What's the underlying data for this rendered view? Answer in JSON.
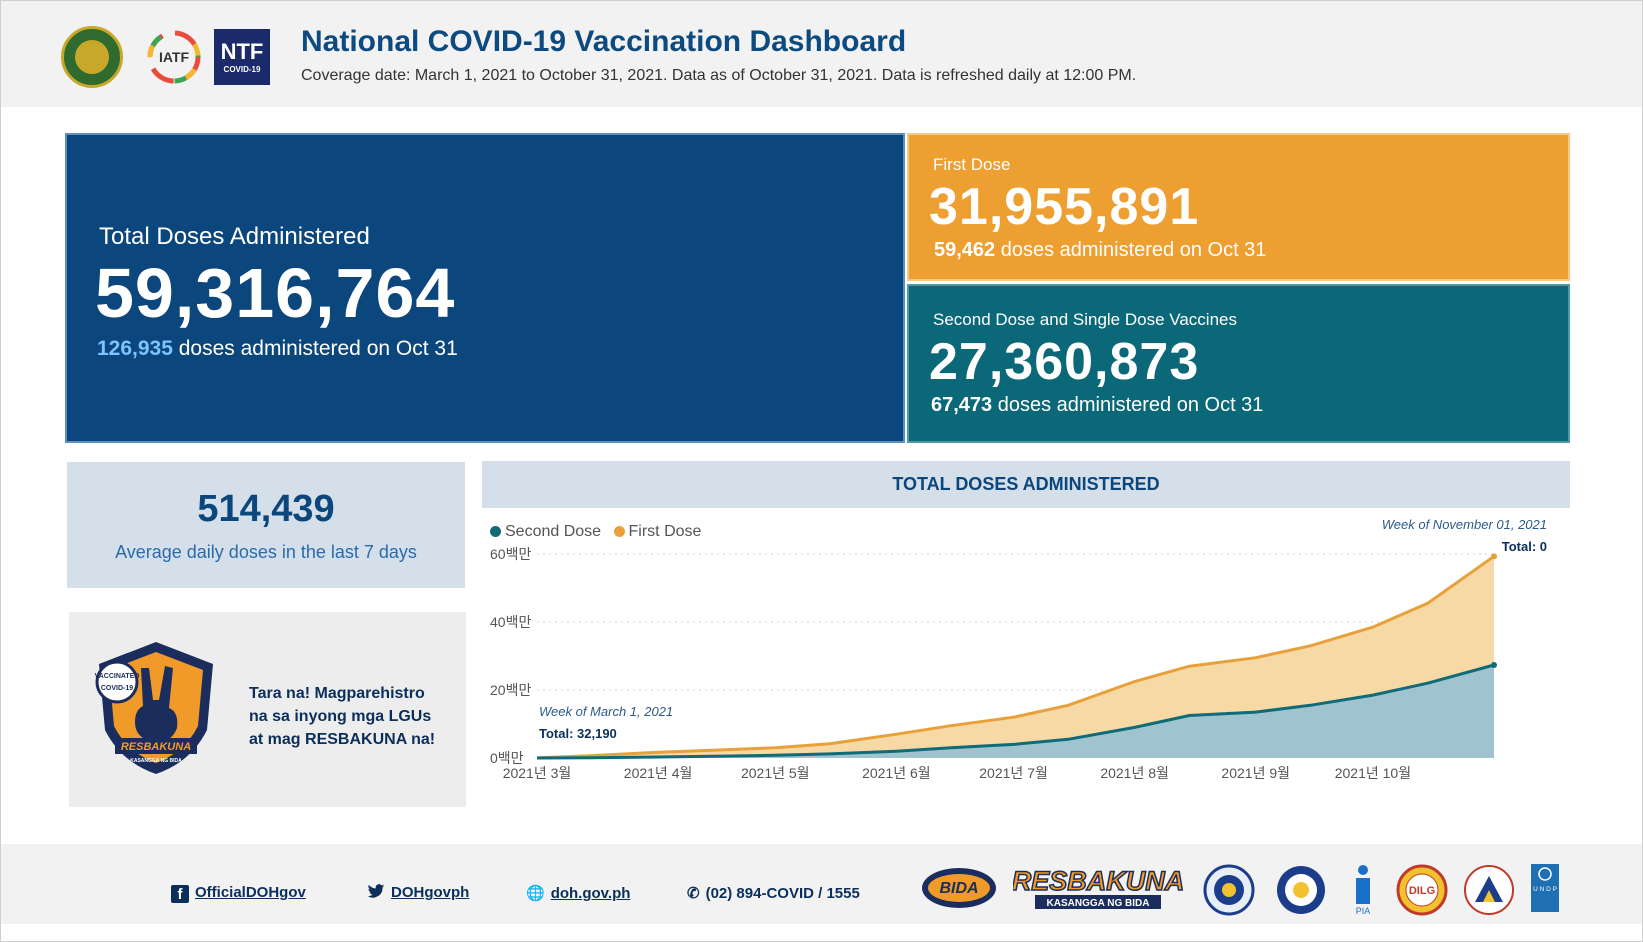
{
  "header": {
    "title": "National COVID-19 Vaccination Dashboard",
    "subtitle": "Coverage date: March 1, 2021 to October 31, 2021. Data as of October 31, 2021. Data is refreshed daily at 12:00 PM.",
    "logos": {
      "iatf": "IATF",
      "ntf": "NTF",
      "ntf_sub": "COVID-19"
    }
  },
  "kpi": {
    "total": {
      "label": "Total Doses Administered",
      "value": "59,316,764",
      "daily": "126,935",
      "daily_suffix": " doses administered on Oct 31"
    },
    "first": {
      "label": "First Dose",
      "value": "31,955,891",
      "daily": "59,462",
      "daily_suffix": " doses administered on Oct 31"
    },
    "second": {
      "label": "Second Dose and Single Dose Vaccines",
      "value": "27,360,873",
      "daily": "67,473",
      "daily_suffix": " doses administered on Oct 31"
    }
  },
  "average": {
    "value": "514,439",
    "label": "Average daily doses in the last 7 days"
  },
  "promo": {
    "badge_top": "VACCINATED",
    "badge_side": "COVID-19",
    "badge_name": "RESBAKUNA",
    "badge_tagline": "KASANGGA NG BIDA",
    "lines": [
      "Tara na! Magparehistro",
      "na sa inyong mga LGUs",
      "at mag RESBAKUNA na!"
    ]
  },
  "chart_data": {
    "type": "area",
    "title": "TOTAL DOSES ADMINISTERED",
    "legend": [
      "Second Dose",
      "First Dose"
    ],
    "legend_position": "top-left",
    "x_tick_labels": [
      "2021년 3월",
      "2021년 4월",
      "2021년 5월",
      "2021년 6월",
      "2021년 7월",
      "2021년 8월",
      "2021년 9월",
      "2021년 10월"
    ],
    "y_tick_labels": [
      "0백만",
      "20백만",
      "40백만",
      "60백만"
    ],
    "ylim": [
      0,
      60000000
    ],
    "grid": true,
    "stacked": true,
    "colors": {
      "second": "#0f6b78",
      "second_fill": "#9fc4cf",
      "first": "#e8a13a",
      "first_fill": "#f7d9a6"
    },
    "x": [
      "2021-03-01",
      "2021-03-15",
      "2021-04-01",
      "2021-04-15",
      "2021-05-01",
      "2021-05-15",
      "2021-06-01",
      "2021-06-15",
      "2021-07-01",
      "2021-07-15",
      "2021-08-01",
      "2021-08-15",
      "2021-09-01",
      "2021-09-15",
      "2021-10-01",
      "2021-10-15",
      "2021-11-01"
    ],
    "series": [
      {
        "name": "Second Dose",
        "values": [
          0,
          100000,
          300000,
          500000,
          800000,
          1200000,
          2000000,
          3000000,
          4000000,
          5500000,
          9000000,
          12500000,
          13500000,
          15500000,
          18500000,
          22000000,
          27360873
        ]
      },
      {
        "name": "First Dose",
        "values": [
          32190,
          600000,
          1400000,
          1800000,
          2200000,
          3000000,
          5000000,
          6500000,
          8000000,
          10000000,
          13500000,
          14500000,
          16000000,
          17500000,
          20000000,
          23500000,
          31955891
        ]
      }
    ],
    "annotations": [
      {
        "week": "Week of March 1, 2021",
        "total_label": "Total: 32,190"
      },
      {
        "week": "Week of November 01, 2021",
        "total_label": "Total: 0"
      }
    ]
  },
  "footer": {
    "facebook": "OfficialDOHgov",
    "twitter": "DOHgovph",
    "website": "doh.gov.ph",
    "phone": "(02) 894-COVID / 1555",
    "partners": {
      "bida": "BIDA",
      "resbakuna": "RESBAKUNA",
      "resbakuna_sub": "KASANGGA NG BIDA",
      "pia": "PIA",
      "dilg": "DILG",
      "undp": "U N D P"
    }
  }
}
